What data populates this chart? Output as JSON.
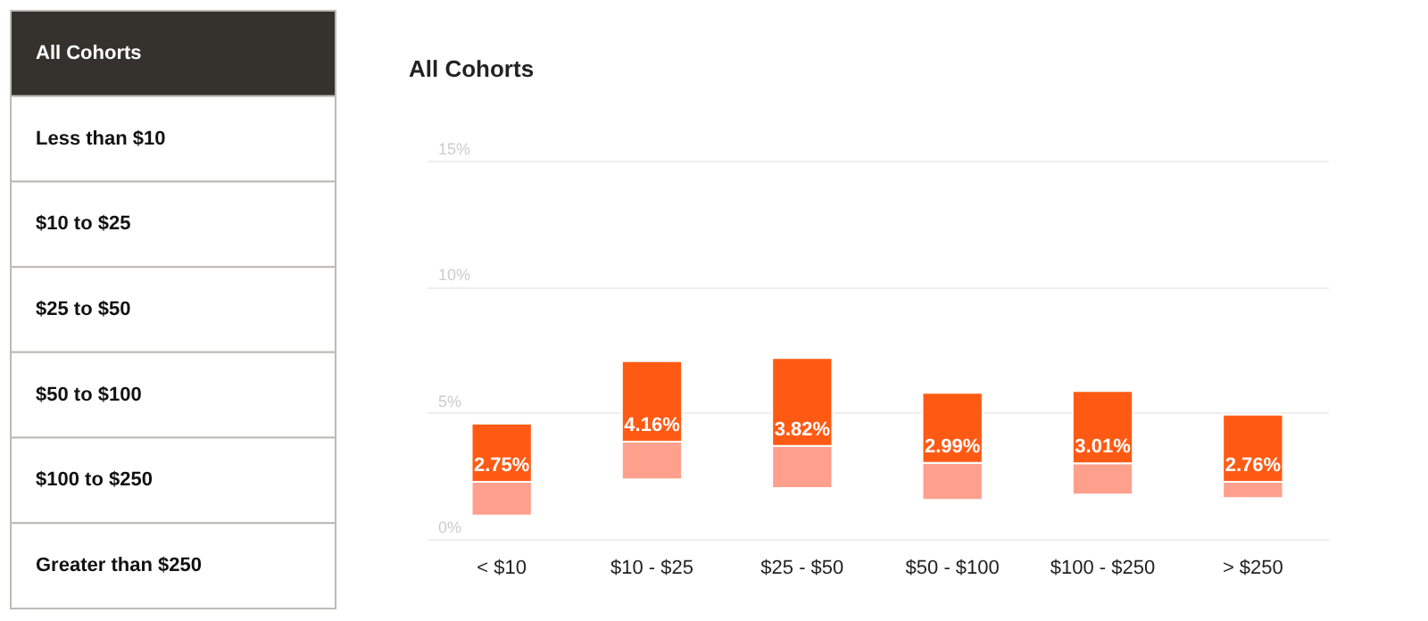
{
  "chart_data": [
    {
      "type": "other",
      "annotations": [
        "All Cohorts",
        "Less than $10",
        "$10 to $25",
        "$25 to $50",
        "$50 to $100",
        "$100 to $250",
        "Greater than $250"
      ]
    },
    {
      "type": "bar",
      "title": "All Cohorts",
      "categories": [
        "< $10",
        "$10 - $25",
        "$25 - $50",
        "$50 - $100",
        "$100 - $250",
        "> $250"
      ],
      "series": [
        {
          "color": "#ffa08c",
          "base": [
            0.93,
            2.36,
            2.02,
            1.55,
            1.76,
            1.62
          ],
          "values": [
            1.33,
            1.5,
            1.67,
            1.47,
            1.24,
            0.64
          ]
        },
        {
          "color": "#ff5a14",
          "base": [
            2.26,
            3.86,
            3.69,
            3.02,
            3.0,
            2.26
          ],
          "values": [
            2.31,
            3.19,
            3.48,
            2.77,
            2.86,
            2.67
          ]
        }
      ],
      "annotations": [
        {
          "text": "2.75%",
          "x": "< $10",
          "y": 2.26
        },
        {
          "text": "4.16%",
          "x": "$10 - $25",
          "y": 3.86
        },
        {
          "text": "3.82%",
          "x": "$25 - $50",
          "y": 3.69
        },
        {
          "text": "2.99%",
          "x": "$50 - $100",
          "y": 3.02
        },
        {
          "text": "3.01%",
          "x": "$100 - $250",
          "y": 3.0
        },
        {
          "text": "2.76%",
          "x": "> $250",
          "y": 2.26
        }
      ],
      "ylim": [
        0,
        15
      ],
      "yticks": [
        {
          "value": 0,
          "label": "0%"
        },
        {
          "value": 5,
          "label": "5%"
        },
        {
          "value": 10,
          "label": "10%"
        },
        {
          "value": 15,
          "label": "15%"
        }
      ],
      "grid": "y"
    }
  ]
}
